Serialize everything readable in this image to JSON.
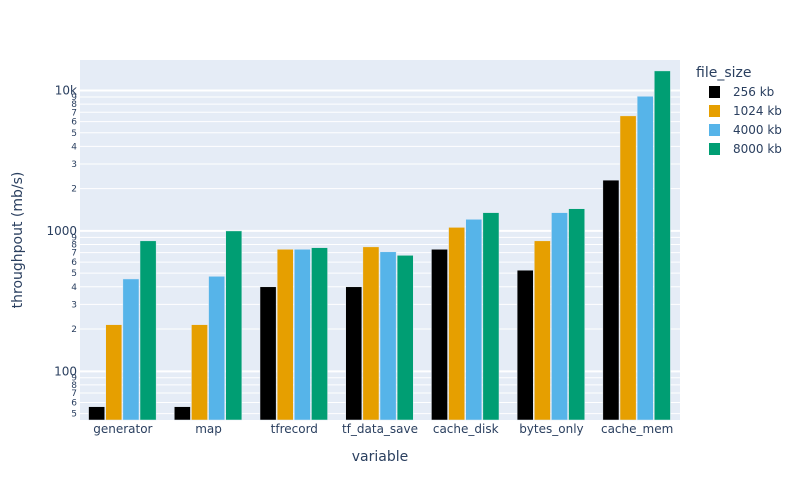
{
  "chart_data": {
    "type": "bar",
    "barmode": "group",
    "categories": [
      "generator",
      "map",
      "tfrecord",
      "tf_data_save",
      "cache_disk",
      "bytes_only",
      "cache_mem"
    ],
    "series": [
      {
        "name": "256 kb",
        "color": "#000000",
        "values": [
          56,
          56,
          400,
          400,
          740,
          525,
          2300
        ]
      },
      {
        "name": "1024 kb",
        "color": "#E69F00",
        "values": [
          215,
          215,
          740,
          770,
          1060,
          850,
          6600
        ]
      },
      {
        "name": "4000 kb",
        "color": "#56B4E9",
        "values": [
          455,
          475,
          740,
          710,
          1210,
          1350,
          9100
        ]
      },
      {
        "name": "8000 kb",
        "color": "#009E73",
        "values": [
          850,
          1000,
          760,
          670,
          1350,
          1440,
          13800
        ]
      }
    ],
    "title": "",
    "xlabel": "variable",
    "ylabel": "throughpout (mb/s)",
    "yscale": "log",
    "ylim": [
      45,
      16500
    ],
    "major_ticks": [
      {
        "value": 100,
        "label": "100"
      },
      {
        "value": 1000,
        "label": "1000"
      },
      {
        "value": 10000,
        "label": "10k"
      }
    ],
    "minor_ticks": [
      {
        "value": 50,
        "label": "5"
      },
      {
        "value": 60,
        "label": "6"
      },
      {
        "value": 70,
        "label": "7"
      },
      {
        "value": 80,
        "label": "8"
      },
      {
        "value": 90,
        "label": "9"
      },
      {
        "value": 200,
        "label": "2"
      },
      {
        "value": 300,
        "label": "3"
      },
      {
        "value": 400,
        "label": "4"
      },
      {
        "value": 500,
        "label": "5"
      },
      {
        "value": 600,
        "label": "6"
      },
      {
        "value": 700,
        "label": "7"
      },
      {
        "value": 800,
        "label": "8"
      },
      {
        "value": 900,
        "label": "9"
      },
      {
        "value": 2000,
        "label": "2"
      },
      {
        "value": 3000,
        "label": "3"
      },
      {
        "value": 4000,
        "label": "4"
      },
      {
        "value": 5000,
        "label": "5"
      },
      {
        "value": 6000,
        "label": "6"
      },
      {
        "value": 7000,
        "label": "7"
      },
      {
        "value": 8000,
        "label": "8"
      },
      {
        "value": 9000,
        "label": "9"
      }
    ],
    "legend_title": "file_size",
    "legend_position": "top-right",
    "grid": true,
    "plot_bgcolor": "#E5ECF6"
  }
}
